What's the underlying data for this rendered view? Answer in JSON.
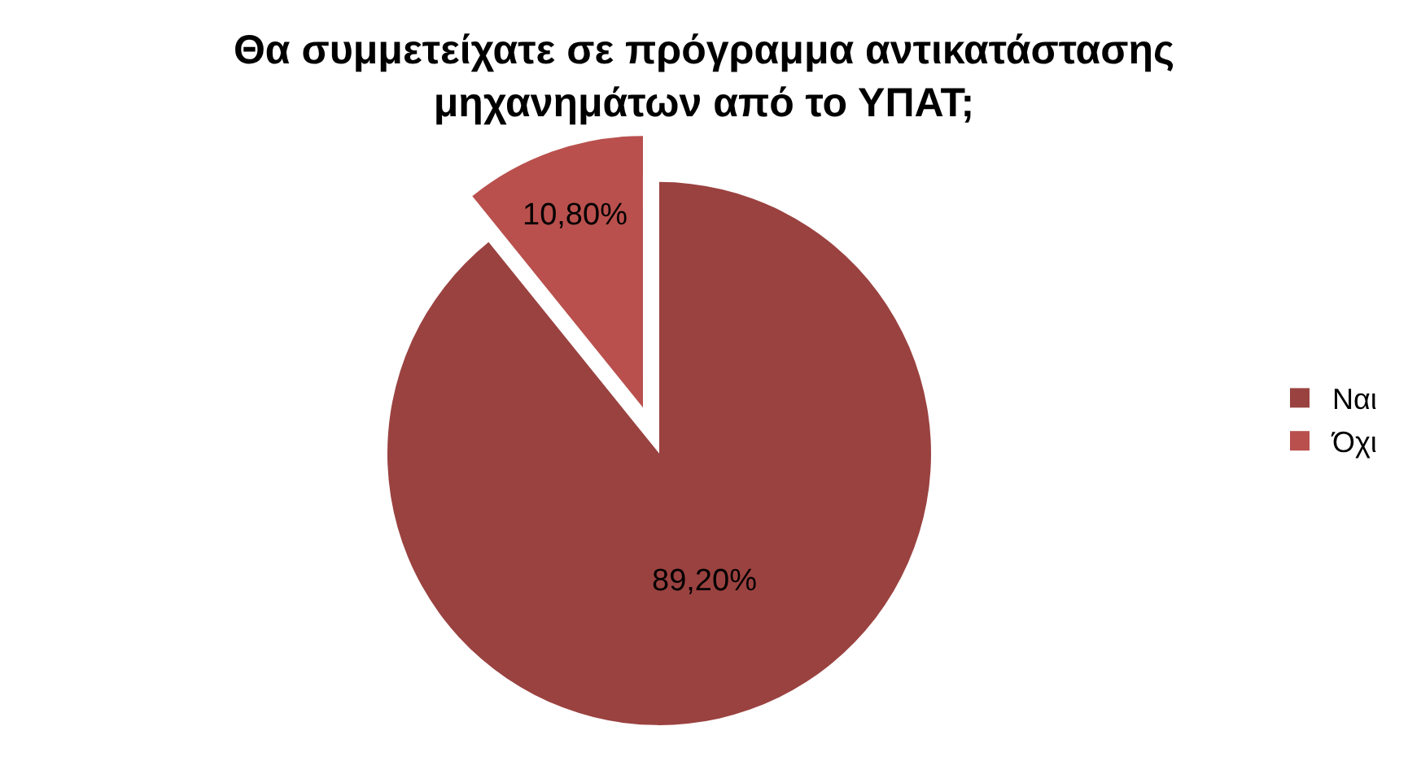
{
  "chart_data": {
    "type": "pie",
    "title": "Θα συμμετείχατε σε πρόγραμμα αντικατάστασης μηχανημάτων από το ΥΠΑΤ;",
    "categories": [
      "Ναι",
      "Όχι"
    ],
    "values": [
      89.2,
      10.8
    ],
    "colors": [
      "#9a4240",
      "#b9504d"
    ],
    "value_labels": [
      "89,20%",
      "10,80%"
    ],
    "legend": "right"
  }
}
